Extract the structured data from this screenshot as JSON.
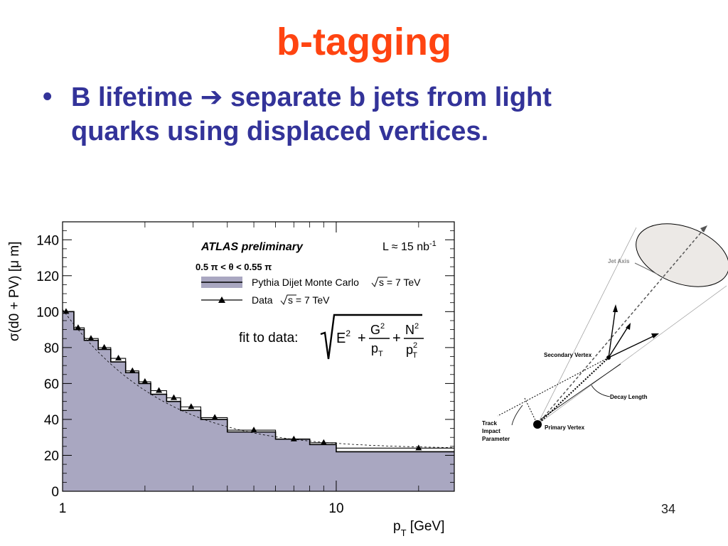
{
  "slide": {
    "title": "b-tagging",
    "bullet_symbol": "•",
    "bullet_line1_a": "B lifetime ",
    "bullet_arrow": "➔",
    "bullet_line1_b": " separate b jets from light",
    "bullet_line2": "quarks using displaced vertices.",
    "slide_number": "34"
  },
  "colors": {
    "title": "#ff4411",
    "bullet": "#333399",
    "mc_fill": "#a9a7c1"
  },
  "chart_data": {
    "type": "line",
    "x_scale": "log",
    "xlim": [
      1,
      27
    ],
    "ylim": [
      0,
      150
    ],
    "xlabel_main": "p",
    "xlabel_sub": "T",
    "xlabel_tail": " [GeV]",
    "ylabel": "σ(d0 + PV)  [μ m]",
    "x_ticks": [
      {
        "value": 1,
        "label": "1"
      },
      {
        "value": 10,
        "label": "10"
      }
    ],
    "y_ticks": [
      0,
      20,
      40,
      60,
      80,
      100,
      120,
      140
    ],
    "annotations": {
      "experiment": "ATLAS preliminary",
      "luminosity_main": "L ≈ 15 nb",
      "luminosity_exp": "-1",
      "theta_cut": "0.5 π < θ < 0.55 π",
      "fit_label": "fit to data:",
      "fit_E": "E",
      "fit_E_exp": "2",
      "fit_plus": "+",
      "fit_G": "G",
      "fit_G_exp": "2",
      "fit_N": "N",
      "fit_N_exp": "2",
      "fit_pT": "p",
      "fit_pT_sub": "T",
      "fit_pT_exp": "2"
    },
    "series": [
      {
        "name": "Pythia Dijet Monte Carlo",
        "energy_label": "s = 7 TeV",
        "style": "filled-histogram",
        "bin_edges": [
          1,
          1.1,
          1.2,
          1.35,
          1.5,
          1.7,
          1.9,
          2.1,
          2.4,
          2.7,
          3.2,
          4,
          6,
          8,
          10,
          27
        ],
        "values": [
          100,
          90,
          84,
          79,
          72,
          66,
          60,
          54,
          50,
          45,
          40,
          33,
          29,
          26,
          22
        ]
      },
      {
        "name": "Data",
        "energy_label": "s = 7 TeV",
        "style": "step-with-triangles",
        "x": [
          1.03,
          1.14,
          1.27,
          1.42,
          1.6,
          1.8,
          2.0,
          2.25,
          2.55,
          2.95,
          3.6,
          5.0,
          7.0,
          9.0,
          20.0
        ],
        "y": [
          100,
          91,
          85,
          80,
          74,
          67,
          61,
          56,
          52,
          47,
          41,
          34,
          29,
          27,
          24
        ]
      }
    ]
  },
  "diagram": {
    "jet_axis": "Jet Axis",
    "secondary_vertex": "Secondary Vertex",
    "decay_length": "Decay Length",
    "primary_vertex": "Primary Vertex",
    "impact_line1": "Track",
    "impact_line2": "Impact",
    "impact_line3": "Parameter"
  }
}
